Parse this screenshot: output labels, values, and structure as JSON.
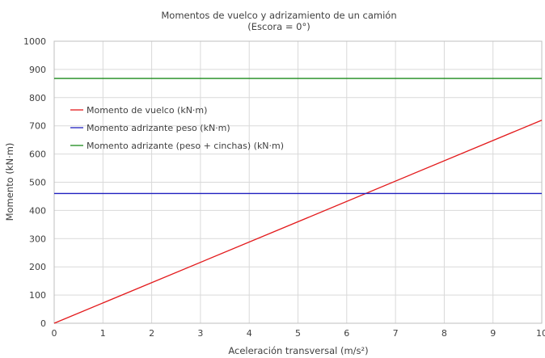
{
  "chart_data": {
    "type": "line",
    "title": "Momentos de vuelco y adrizamiento  de un camión",
    "subtitle": "(Escora = 0°)",
    "xlabel": "Aceleración transversal (m/s²)",
    "ylabel": "Momento (kN·m)",
    "xlim": [
      0,
      10
    ],
    "ylim": [
      0,
      1000
    ],
    "xticks": [
      "0",
      "1",
      "2",
      "3",
      "4",
      "5",
      "6",
      "7",
      "8",
      "9",
      "10"
    ],
    "yticks": [
      "0",
      "100",
      "200",
      "300",
      "400",
      "500",
      "600",
      "700",
      "800",
      "900",
      "1000"
    ],
    "grid": true,
    "legend_position": "top-left",
    "series": [
      {
        "name": "Momento de vuelco (kN·m)",
        "color": "#e31a1c",
        "x": [
          0,
          10
        ],
        "y": [
          0,
          720
        ]
      },
      {
        "name": "Momento adrizante peso (kN·m)",
        "color": "#2020c0",
        "x": [
          0,
          10
        ],
        "y": [
          460,
          460
        ]
      },
      {
        "name": "Momento adrizante (peso + cinchas) (kN·m)",
        "color": "#1a8a1a",
        "x": [
          0,
          10
        ],
        "y": [
          868,
          868
        ]
      }
    ]
  }
}
